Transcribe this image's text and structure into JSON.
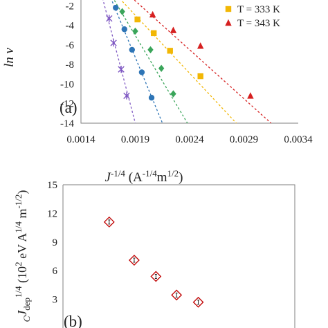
{
  "chart_data": [
    {
      "type": "scatter",
      "panel_label": "(a)",
      "xlabel_parts": [
        "J",
        "-1/4",
        " (A",
        "-1/4",
        "m",
        "1/2",
        ")"
      ],
      "ylabel": "ln ν",
      "xlim": [
        0.0014,
        0.0034
      ],
      "ylim": [
        -14,
        0
      ],
      "xticks": [
        "0.0014",
        "0.0019",
        "0.0024",
        "0.0029",
        "0.0034"
      ],
      "yticks": [
        "-14",
        "-12",
        "-10",
        "-8",
        "-6",
        "-4",
        "-2"
      ],
      "grid": false,
      "legend_position": "top-right",
      "series": [
        {
          "name": "",
          "marker": "star",
          "color": "#7e57c2",
          "x": [
            0.00166,
            0.0017,
            0.00177,
            0.00182
          ],
          "y": [
            -3.3,
            -5.8,
            -8.5,
            -11.2
          ],
          "fit": [
            [
              0.00157,
              0.0
            ],
            [
              0.0019,
              -14.0
            ]
          ]
        },
        {
          "name": "",
          "marker": "circle",
          "color": "#2e75b6",
          "x": [
            0.00172,
            0.0018,
            0.00187,
            0.00196,
            0.00205
          ],
          "y": [
            -2.2,
            -4.4,
            -6.5,
            -8.8,
            -11.4
          ],
          "fit": [
            [
              0.00163,
              0.0
            ],
            [
              0.00215,
              -14.0
            ]
          ]
        },
        {
          "name": "",
          "marker": "diamond",
          "color": "#3aa55a",
          "x": [
            0.00178,
            0.0019,
            0.00204,
            0.00214,
            0.00225
          ],
          "y": [
            -2.6,
            -4.6,
            -6.5,
            -8.4,
            -11.0
          ],
          "fit": [
            [
              0.00163,
              0.0
            ],
            [
              0.00238,
              -14.0
            ]
          ]
        },
        {
          "name": "T = 333 K",
          "marker": "square",
          "color": "#f2b705",
          "x": [
            0.00192,
            0.00207,
            0.00222,
            0.0025
          ],
          "y": [
            -3.4,
            -4.8,
            -6.6,
            -9.2
          ],
          "fit": [
            [
              0.00165,
              0.0
            ],
            [
              0.00283,
              -14.0
            ]
          ]
        },
        {
          "name": "T = 343 K",
          "marker": "triangle",
          "color": "#d62020",
          "x": [
            0.00206,
            0.00225,
            0.0025,
            0.00296
          ],
          "y": [
            -2.9,
            -4.5,
            -6.1,
            -11.2
          ],
          "fit": [
            [
              0.00175,
              0.0
            ],
            [
              0.00315,
              -14.0
            ]
          ]
        }
      ]
    },
    {
      "type": "scatter",
      "panel_label": "(b)",
      "ylabel_parts": [
        "C",
        "J",
        "dep",
        "1/4",
        " (10",
        "2",
        " eV A",
        "1/4",
        " m",
        "-1/2",
        ")"
      ],
      "ylim": [
        0,
        15
      ],
      "yticks": [
        "3",
        "6",
        "9",
        "12",
        "15"
      ],
      "grid": false,
      "series": [
        {
          "name": "",
          "marker": "diamond-open",
          "color": "#c00000",
          "x": [
            0.00166,
            0.00189,
            0.00209,
            0.00228,
            0.00248
          ],
          "y": [
            11.1,
            7.1,
            5.4,
            3.45,
            2.7
          ]
        }
      ]
    }
  ]
}
